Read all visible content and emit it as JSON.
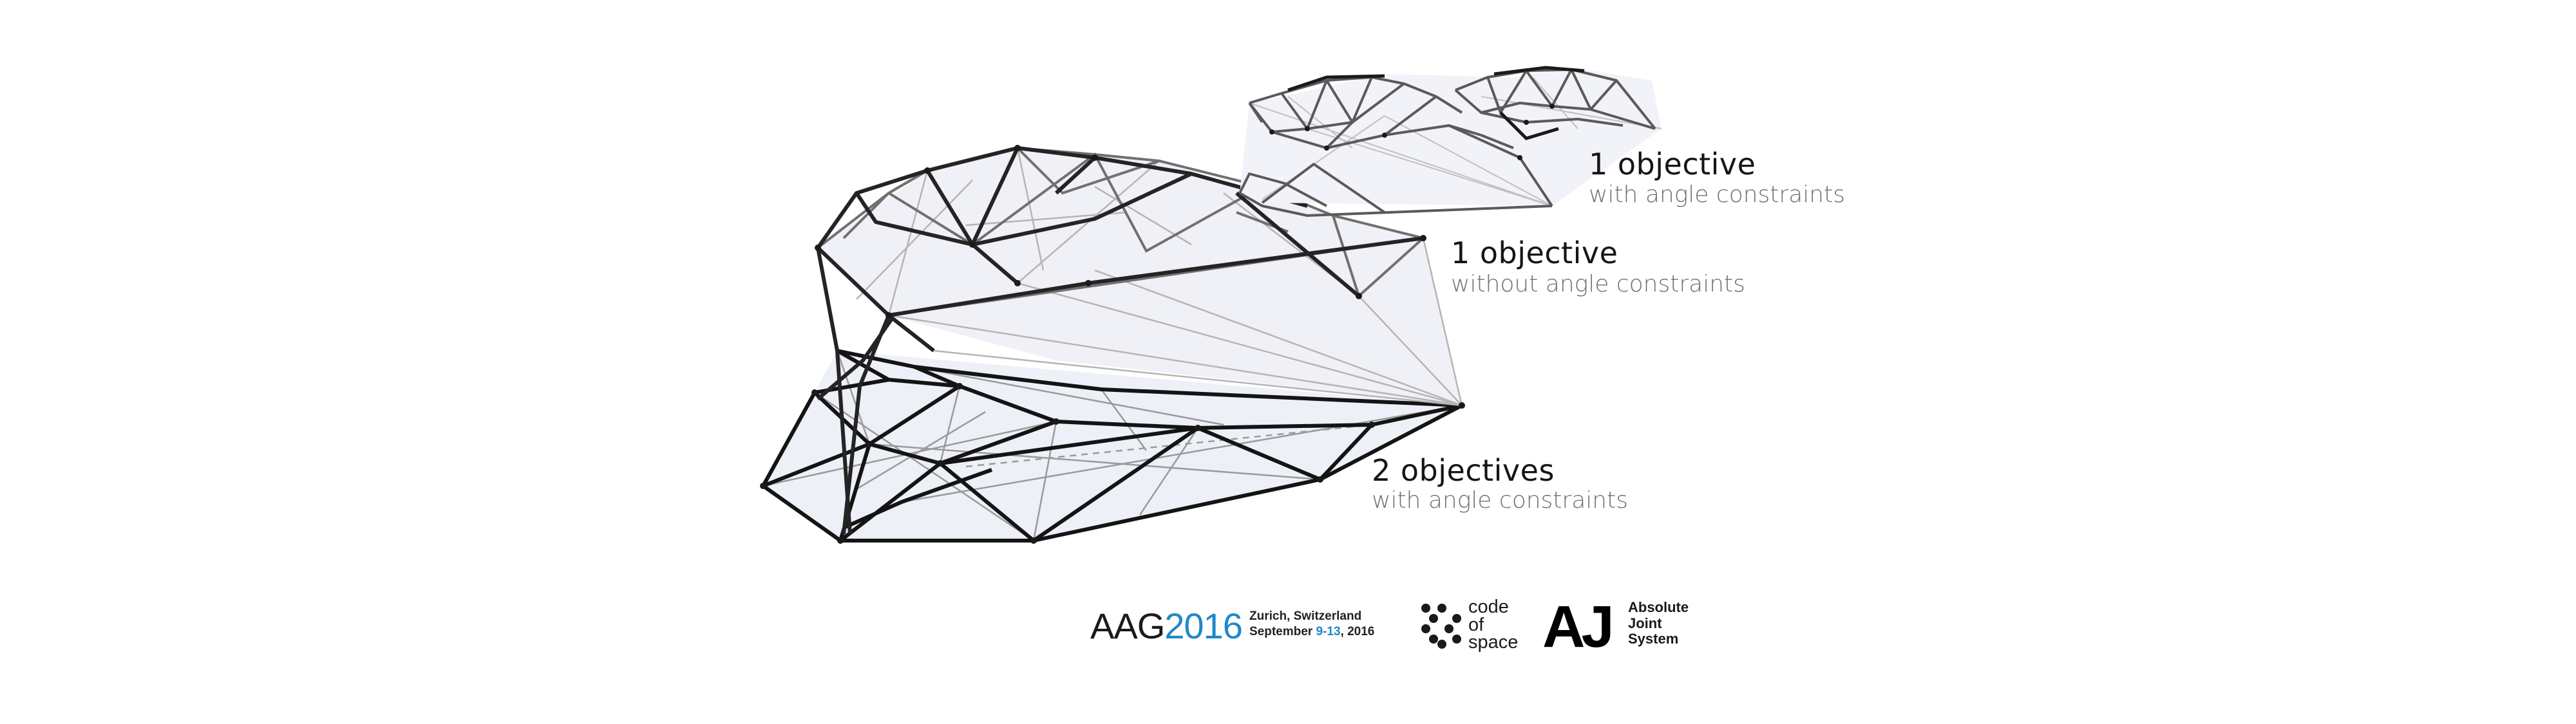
{
  "labels": {
    "top": {
      "title": "1 objective",
      "subtitle": "with angle constraints"
    },
    "middle": {
      "title": "1 objective",
      "subtitle": "without angle constraints"
    },
    "bottom": {
      "title": "2 objectives",
      "subtitle": "with angle constraints"
    }
  },
  "footer": {
    "conference": {
      "prefix": "AAG",
      "year": "2016"
    },
    "location": {
      "city": "Zurich, Switzerland",
      "month": "September ",
      "dates": "9-13",
      "year": ", 2016"
    },
    "code_of_space": {
      "line1": "code",
      "line2": "of",
      "line3": "space"
    },
    "absolute_joint": {
      "mark": "AJ",
      "line1": "Absolute",
      "line2": "Joint",
      "line3": "System"
    }
  },
  "colors": {
    "accent_blue": "#1f88c9",
    "strut_dark": "#1a1a1a",
    "strut_mid": "#6a6a6a",
    "strut_light": "#b5b5b5",
    "panel_fill": "#eef0f8"
  }
}
